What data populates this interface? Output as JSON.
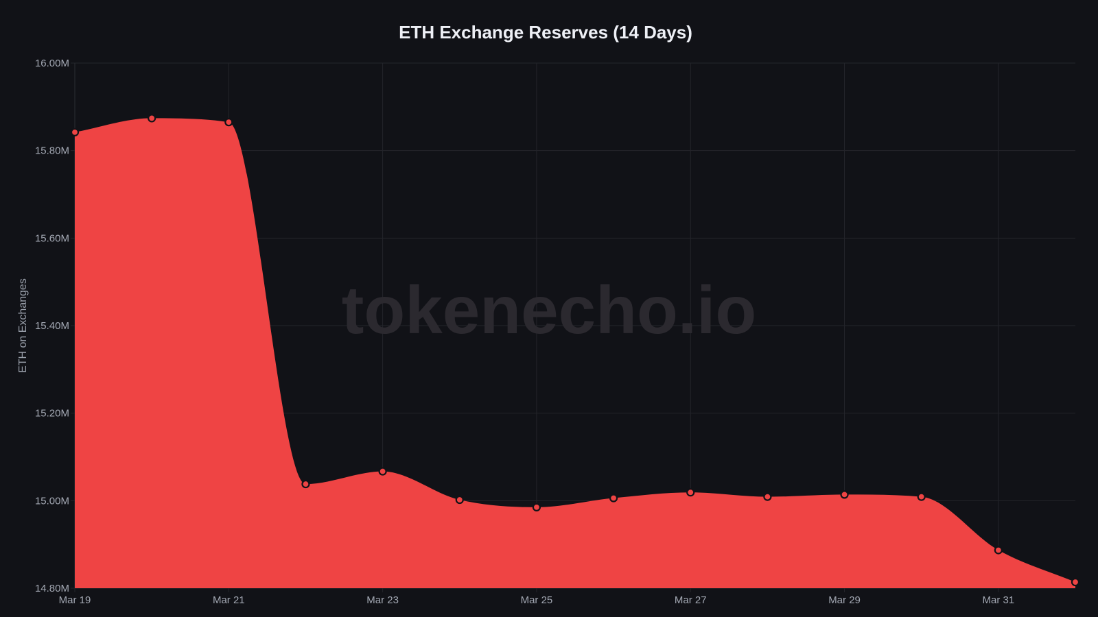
{
  "colors": {
    "background": "#111217",
    "grid": "#24252b",
    "fill": "#ef4444",
    "point_stroke": "#111217",
    "text": "#eef0f6",
    "tick_text": "#a3a8b3"
  },
  "watermark": "tokenecho.io",
  "chart_data": {
    "type": "area",
    "title": "ETH Exchange Reserves (14 Days)",
    "xlabel": "",
    "ylabel": "ETH on Exchanges",
    "ylim": [
      14.8,
      16.0
    ],
    "y_unit": "M",
    "y_ticks": [
      "14.80M",
      "15.00M",
      "15.20M",
      "15.40M",
      "15.60M",
      "15.80M",
      "16.00M"
    ],
    "y_tick_values": [
      14.8,
      15.0,
      15.2,
      15.4,
      15.6,
      15.8,
      16.0
    ],
    "x": [
      "Mar 19",
      "Mar 20",
      "Mar 21",
      "Mar 22",
      "Mar 23",
      "Mar 24",
      "Mar 25",
      "Mar 26",
      "Mar 27",
      "Mar 28",
      "Mar 29",
      "Mar 30",
      "Mar 31",
      "Apr 1"
    ],
    "x_tick_labels": [
      "Mar 19",
      "",
      "Mar 21",
      "",
      "Mar 23",
      "",
      "Mar 25",
      "",
      "Mar 27",
      "",
      "Mar 29",
      "",
      "Mar 31",
      ""
    ],
    "series": [
      {
        "name": "ETH on Exchanges",
        "values": [
          15.842,
          15.874,
          15.865,
          15.038,
          15.067,
          15.002,
          14.985,
          15.006,
          15.019,
          15.009,
          15.014,
          15.009,
          14.887,
          14.814
        ]
      }
    ],
    "grid": true,
    "legend": "none"
  }
}
